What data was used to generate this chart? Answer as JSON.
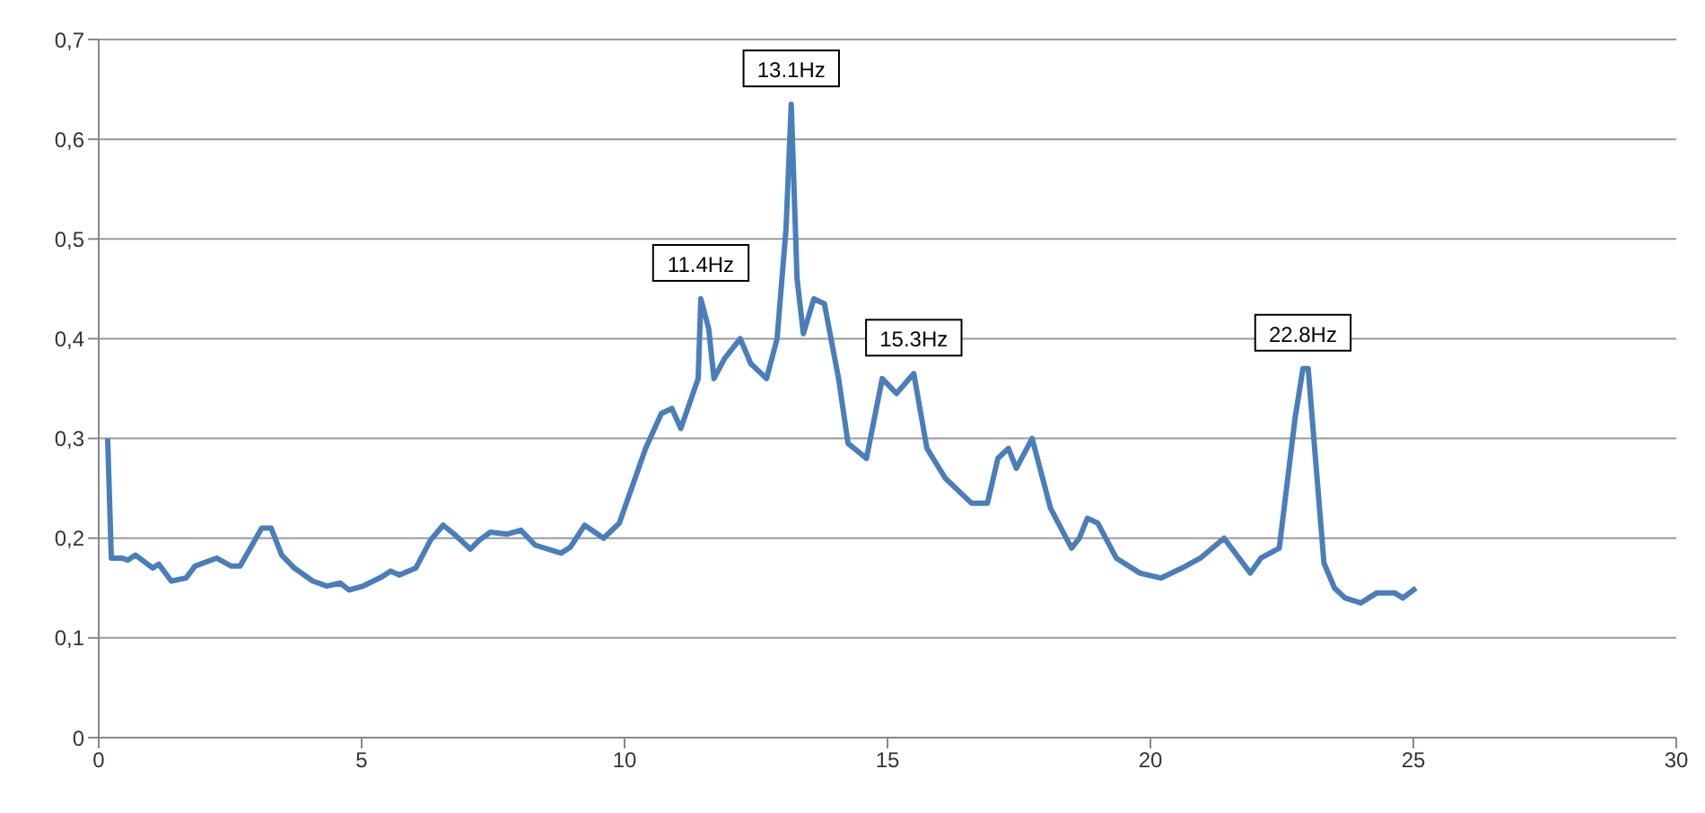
{
  "chart_data": {
    "type": "line",
    "x": [
      0.17,
      0.24,
      0.45,
      0.55,
      0.7,
      1.03,
      1.14,
      1.38,
      1.66,
      1.83,
      2.24,
      2.52,
      2.69,
      3.1,
      3.28,
      3.48,
      3.72,
      4.07,
      4.34,
      4.59,
      4.76,
      5.03,
      5.38,
      5.55,
      5.72,
      6.03,
      6.31,
      6.55,
      6.76,
      7.07,
      7.24,
      7.45,
      7.76,
      8.03,
      8.3,
      8.79,
      8.97,
      9.24,
      9.6,
      9.9,
      10.1,
      10.4,
      10.7,
      10.9,
      11.07,
      11.4,
      11.45,
      11.6,
      11.7,
      11.9,
      12.2,
      12.4,
      12.7,
      12.9,
      13.07,
      13.17,
      13.28,
      13.4,
      13.6,
      13.8,
      14.07,
      14.25,
      14.6,
      14.9,
      15.17,
      15.5,
      15.75,
      16.1,
      16.6,
      16.9,
      17.1,
      17.3,
      17.45,
      17.75,
      18.1,
      18.5,
      18.65,
      18.8,
      19.0,
      19.35,
      19.8,
      20.2,
      20.6,
      20.95,
      21.4,
      21.9,
      22.1,
      22.45,
      22.75,
      22.9,
      23.0,
      23.3,
      23.5,
      23.7,
      24.0,
      24.3,
      24.65,
      24.8,
      25.05
    ],
    "series": [
      {
        "color": "#4a7ebb",
        "values": [
          0.3,
          0.18,
          0.18,
          0.178,
          0.183,
          0.17,
          0.174,
          0.157,
          0.16,
          0.172,
          0.18,
          0.172,
          0.172,
          0.21,
          0.21,
          0.183,
          0.17,
          0.157,
          0.152,
          0.155,
          0.148,
          0.152,
          0.161,
          0.167,
          0.163,
          0.17,
          0.198,
          0.213,
          0.204,
          0.189,
          0.198,
          0.206,
          0.204,
          0.208,
          0.193,
          0.185,
          0.191,
          0.213,
          0.2,
          0.215,
          0.245,
          0.29,
          0.325,
          0.33,
          0.31,
          0.36,
          0.44,
          0.41,
          0.36,
          0.38,
          0.4,
          0.375,
          0.36,
          0.4,
          0.51,
          0.635,
          0.46,
          0.405,
          0.44,
          0.435,
          0.36,
          0.295,
          0.28,
          0.36,
          0.345,
          0.365,
          0.29,
          0.26,
          0.235,
          0.235,
          0.28,
          0.29,
          0.27,
          0.3,
          0.23,
          0.19,
          0.2,
          0.22,
          0.215,
          0.18,
          0.165,
          0.16,
          0.17,
          0.18,
          0.2,
          0.165,
          0.18,
          0.19,
          0.32,
          0.37,
          0.37,
          0.175,
          0.15,
          0.14,
          0.135,
          0.145,
          0.145,
          0.14,
          0.15
        ]
      }
    ],
    "xlim": [
      0,
      30
    ],
    "xticks": [
      0,
      5,
      10,
      15,
      20,
      25,
      30
    ],
    "ylim": [
      0,
      0.7
    ],
    "yticks": [
      0,
      {
        "value": 0.1,
        "label": "0,1"
      },
      {
        "value": 0.2,
        "label": "0,2"
      },
      {
        "value": 0.3,
        "label": "0,3"
      },
      {
        "value": 0.4,
        "label": "0,4"
      },
      {
        "value": 0.5,
        "label": "0,5"
      },
      {
        "value": 0.6,
        "label": "0,6"
      },
      {
        "value": 0.7,
        "label": "0,7"
      }
    ],
    "grid": "y",
    "marker": "none",
    "line_style": "solid",
    "annotations": [
      {
        "text": "11.4Hz",
        "x": 11.45,
        "y": 0.44
      },
      {
        "text": "13.1Hz",
        "x": 13.17,
        "y": 0.635
      },
      {
        "text": "15.3Hz",
        "x": 15.5,
        "y": 0.365
      },
      {
        "text": "22.8Hz",
        "x": 22.9,
        "y": 0.37
      }
    ]
  }
}
